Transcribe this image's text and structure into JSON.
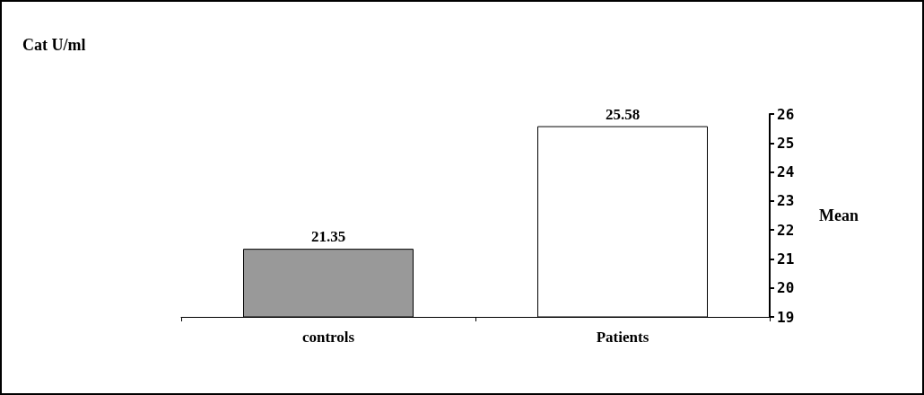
{
  "chart_data": {
    "type": "bar",
    "title": "Cat U/ml",
    "ylabel": "Mean",
    "categories": [
      "controls",
      "Patients"
    ],
    "values": [
      21.35,
      25.58
    ],
    "colors": [
      "#999999",
      "#ffffff"
    ],
    "ylim": [
      19,
      26
    ],
    "yticks": [
      19,
      20,
      21,
      22,
      23,
      24,
      25,
      26
    ],
    "data_labels": true,
    "grid": false
  }
}
